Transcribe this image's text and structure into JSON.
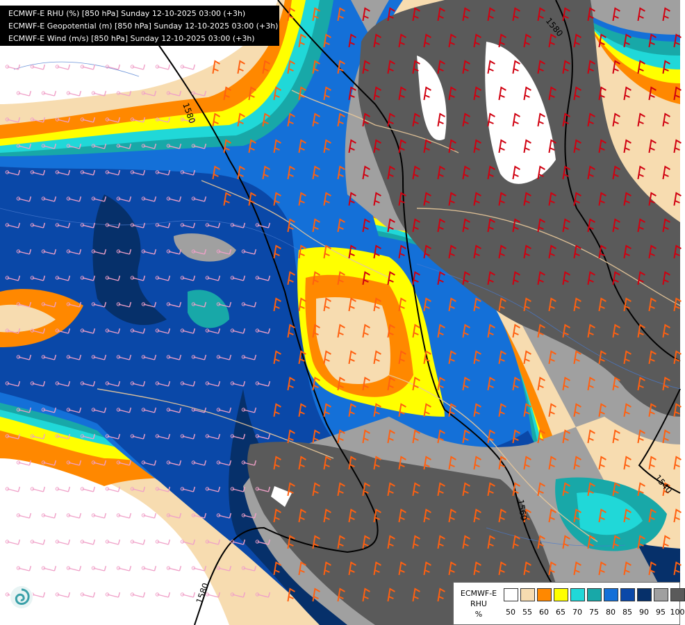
{
  "header": {
    "lines": [
      "ECMWF-E RHU (%) [850 hPa] Sunday 12-10-2025 03:00 (+3h)",
      "ECMWF-E Geopotential (m) [850 hPa] Sunday 12-10-2025 03:00 (+3h)",
      "ECMWF-E Wind (m/s) [850 hPa] Sunday 12-10-2025 03:00 (+3h)"
    ]
  },
  "map": {
    "contour_labels": [
      "1580",
      "1580",
      "1580",
      "1560",
      "1540"
    ],
    "colors": {
      "rh_50": "#ffffff",
      "rh_55": "#f7dcb0",
      "rh_60": "#ff8800",
      "rh_65": "#ffff00",
      "rh_70": "#20d8d8",
      "rh_75": "#18a8a8",
      "rh_80": "#1470d8",
      "rh_85": "#0a48a8",
      "rh_90": "#06306a",
      "rh_95": "#a0a0a0",
      "rh_100": "#5a5a5a",
      "barb_light": "#f0a0c8",
      "barb_medium": "#ff6010",
      "barb_strong": "#d00010"
    }
  },
  "legend": {
    "title_lines": [
      "ECMWF-E",
      "RHU",
      "%"
    ],
    "levels": [
      {
        "label": "50",
        "color": "#ffffff"
      },
      {
        "label": "55",
        "color": "#f7dcb0"
      },
      {
        "label": "60",
        "color": "#ff8800"
      },
      {
        "label": "65",
        "color": "#ffff00"
      },
      {
        "label": "70",
        "color": "#20d8d8"
      },
      {
        "label": "75",
        "color": "#18a8a8"
      },
      {
        "label": "80",
        "color": "#1470d8"
      },
      {
        "label": "85",
        "color": "#0a48a8"
      },
      {
        "label": "90",
        "color": "#06306a"
      },
      {
        "label": "95",
        "color": "#a0a0a0"
      },
      {
        "label": "100",
        "color": "#5a5a5a"
      }
    ]
  },
  "logo": {
    "icon": "ecmwf-swirl-icon"
  }
}
